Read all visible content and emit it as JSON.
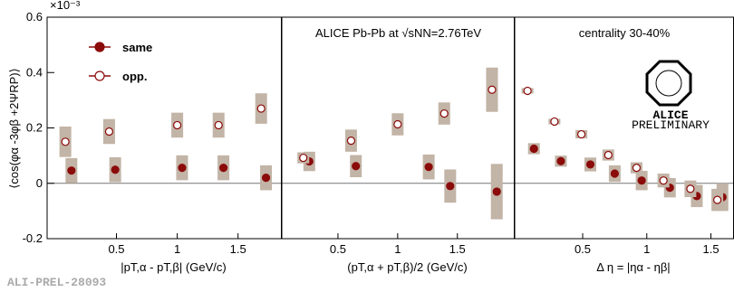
{
  "chart_data": [
    {
      "type": "scatter",
      "ylabel": "⟨cos(φα -3φβ +2ΨRP)⟩",
      "y_multiplier": "×10⁻³",
      "xlabel": "|pT,α - pT,β| (GeV/c)",
      "xlim": [
        -0.07,
        1.86
      ],
      "xticks": [
        0.5,
        1,
        1.5
      ],
      "ylim": [
        -0.2,
        0.6
      ],
      "yticks": [
        -0.2,
        0,
        0.2,
        0.4,
        0.6
      ],
      "legend": "upper left",
      "series": [
        {
          "name": "same",
          "color": "#8b0a0a",
          "marker": "filled",
          "x": [
            0.13,
            0.49,
            1.04,
            1.38,
            1.73
          ],
          "values": [
            0.046,
            0.049,
            0.056,
            0.056,
            0.02
          ],
          "errors": [
            0.045,
            0.045,
            0.045,
            0.045,
            0.045
          ]
        },
        {
          "name": "opp.",
          "color": "#8b0a0a",
          "marker": "open",
          "x": [
            0.08,
            0.44,
            1.0,
            1.34,
            1.69
          ],
          "values": [
            0.15,
            0.187,
            0.21,
            0.21,
            0.27
          ],
          "errors": [
            0.055,
            0.045,
            0.045,
            0.045,
            0.055
          ]
        }
      ]
    },
    {
      "type": "scatter",
      "annotation": "ALICE Pb-Pb at √sNN=2.76TeV",
      "xlabel": "(pT,α + pT,β)/2 (GeV/c)",
      "xlim": [
        0.03,
        1.98
      ],
      "xticks": [
        0.5,
        1,
        1.5
      ],
      "ylim": [
        -0.2,
        0.6
      ],
      "series": [
        {
          "color": "#8b0a0a",
          "marker": "filled",
          "x": [
            0.26,
            0.65,
            1.26,
            1.44,
            1.83
          ],
          "values": [
            0.079,
            0.062,
            0.059,
            -0.01,
            -0.03
          ],
          "errors": [
            0.035,
            0.04,
            0.045,
            0.06,
            0.1
          ]
        },
        {
          "color": "#8b0a0a",
          "marker": "open",
          "x": [
            0.21,
            0.61,
            1.0,
            1.39,
            1.79
          ],
          "values": [
            0.092,
            0.154,
            0.213,
            0.252,
            0.338
          ],
          "errors": [
            0.02,
            0.04,
            0.04,
            0.04,
            0.08
          ]
        }
      ]
    },
    {
      "type": "scatter",
      "annotation": "centrality 30-40%",
      "xlabel": "Δ η = |ηα - ηβ|",
      "xlim": [
        -0.03,
        1.68
      ],
      "xticks": [
        0.5,
        1,
        1.5
      ],
      "ylim": [
        -0.2,
        0.6
      ],
      "series": [
        {
          "color": "#8b0a0a",
          "marker": "filled",
          "x": [
            0.12,
            0.33,
            0.56,
            0.75,
            0.96,
            1.18,
            1.39,
            1.59
          ],
          "values": [
            0.125,
            0.08,
            0.068,
            0.035,
            0.01,
            -0.016,
            -0.046,
            -0.05
          ],
          "errors": [
            0.02,
            0.02,
            0.025,
            0.03,
            0.035,
            0.035,
            0.04,
            0.05
          ]
        },
        {
          "color": "#8b0a0a",
          "marker": "open",
          "x": [
            0.07,
            0.28,
            0.49,
            0.7,
            0.92,
            1.13,
            1.34,
            1.55
          ],
          "values": [
            0.334,
            0.223,
            0.177,
            0.102,
            0.056,
            0.01,
            -0.02,
            -0.06
          ],
          "errors": [
            0.01,
            0.01,
            0.015,
            0.02,
            0.02,
            0.025,
            0.03,
            0.04
          ]
        }
      ]
    }
  ],
  "logo": {
    "name": "ALICE",
    "label": "PRELIMINARY"
  },
  "watermark": "ALI-PREL-28093"
}
